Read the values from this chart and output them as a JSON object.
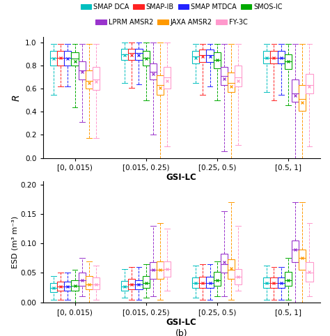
{
  "legend_labels": [
    "SMAP DCA",
    "SMAP-IB",
    "SMAP MTDCA",
    "SMOS-IC",
    "LPRM AMSR2",
    "JAXA AMSR2",
    "FY-3C"
  ],
  "colors": [
    "#00BFBF",
    "#FF2222",
    "#2222FF",
    "#00AA00",
    "#9933CC",
    "#FF9900",
    "#FF99CC"
  ],
  "groups": [
    "[0, 0.015)",
    "[0.015, 0.25)",
    "[0.25, 0.5)",
    "[0.5, 1]"
  ],
  "panel_a": {
    "ylabel": "R",
    "ylim": [
      0.0,
      1.05
    ],
    "yticks": [
      0.0,
      0.2,
      0.4,
      0.6,
      0.8,
      1.0
    ],
    "boxes": {
      "[0, 0.015)": [
        {
          "whislo": 0.55,
          "q1": 0.8,
          "med": 0.87,
          "q3": 0.93,
          "whishi": 0.99,
          "mean": 0.86
        },
        {
          "whislo": 0.62,
          "q1": 0.8,
          "med": 0.87,
          "q3": 0.93,
          "whishi": 0.99,
          "mean": 0.87
        },
        {
          "whislo": 0.62,
          "q1": 0.8,
          "med": 0.87,
          "q3": 0.93,
          "whishi": 0.99,
          "mean": 0.86
        },
        {
          "whislo": 0.44,
          "q1": 0.8,
          "med": 0.86,
          "q3": 0.92,
          "whishi": 0.99,
          "mean": 0.84
        },
        {
          "whislo": 0.31,
          "q1": 0.68,
          "med": 0.76,
          "q3": 0.84,
          "whishi": 0.99,
          "mean": 0.75
        },
        {
          "whislo": 0.17,
          "q1": 0.6,
          "med": 0.67,
          "q3": 0.76,
          "whishi": 0.99,
          "mean": 0.65
        },
        {
          "whislo": 0.17,
          "q1": 0.59,
          "med": 0.68,
          "q3": 0.79,
          "whishi": 0.99,
          "mean": 0.66
        }
      ],
      "[0.015, 0.25)": [
        {
          "whislo": 0.65,
          "q1": 0.85,
          "med": 0.9,
          "q3": 0.95,
          "whishi": 1.0,
          "mean": 0.89
        },
        {
          "whislo": 0.61,
          "q1": 0.85,
          "med": 0.91,
          "q3": 0.95,
          "whishi": 1.0,
          "mean": 0.89
        },
        {
          "whislo": 0.64,
          "q1": 0.85,
          "med": 0.91,
          "q3": 0.95,
          "whishi": 1.0,
          "mean": 0.89
        },
        {
          "whislo": 0.5,
          "q1": 0.8,
          "med": 0.87,
          "q3": 0.93,
          "whishi": 1.0,
          "mean": 0.86
        },
        {
          "whislo": 0.2,
          "q1": 0.68,
          "med": 0.75,
          "q3": 0.82,
          "whishi": 1.0,
          "mean": 0.73
        },
        {
          "whislo": 0.0,
          "q1": 0.55,
          "med": 0.63,
          "q3": 0.72,
          "whishi": 1.0,
          "mean": 0.61
        },
        {
          "whislo": 0.1,
          "q1": 0.6,
          "med": 0.7,
          "q3": 0.79,
          "whishi": 1.0,
          "mean": 0.67
        }
      ],
      "[0.25, 0.5)": [
        {
          "whislo": 0.65,
          "q1": 0.82,
          "med": 0.88,
          "q3": 0.93,
          "whishi": 0.99,
          "mean": 0.87
        },
        {
          "whislo": 0.55,
          "q1": 0.83,
          "med": 0.89,
          "q3": 0.94,
          "whishi": 0.99,
          "mean": 0.88
        },
        {
          "whislo": 0.62,
          "q1": 0.83,
          "med": 0.89,
          "q3": 0.94,
          "whishi": 0.99,
          "mean": 0.88
        },
        {
          "whislo": 0.5,
          "q1": 0.78,
          "med": 0.85,
          "q3": 0.92,
          "whishi": 0.99,
          "mean": 0.85
        },
        {
          "whislo": 0.06,
          "q1": 0.63,
          "med": 0.71,
          "q3": 0.79,
          "whishi": 0.99,
          "mean": 0.69
        },
        {
          "whislo": 0.0,
          "q1": 0.57,
          "med": 0.65,
          "q3": 0.74,
          "whishi": 0.99,
          "mean": 0.62
        },
        {
          "whislo": 0.11,
          "q1": 0.62,
          "med": 0.7,
          "q3": 0.8,
          "whishi": 0.99,
          "mean": 0.67
        }
      ],
      "[0.5, 1]": [
        {
          "whislo": 0.57,
          "q1": 0.82,
          "med": 0.87,
          "q3": 0.93,
          "whishi": 0.99,
          "mean": 0.87
        },
        {
          "whislo": 0.5,
          "q1": 0.82,
          "med": 0.87,
          "q3": 0.93,
          "whishi": 0.99,
          "mean": 0.87
        },
        {
          "whislo": 0.55,
          "q1": 0.82,
          "med": 0.87,
          "q3": 0.93,
          "whishi": 0.99,
          "mean": 0.87
        },
        {
          "whislo": 0.46,
          "q1": 0.77,
          "med": 0.84,
          "q3": 0.9,
          "whishi": 0.99,
          "mean": 0.84
        },
        {
          "whislo": 0.0,
          "q1": 0.49,
          "med": 0.56,
          "q3": 0.68,
          "whishi": 0.99,
          "mean": 0.54
        },
        {
          "whislo": 0.0,
          "q1": 0.41,
          "med": 0.51,
          "q3": 0.63,
          "whishi": 0.99,
          "mean": 0.48
        },
        {
          "whislo": 0.1,
          "q1": 0.56,
          "med": 0.63,
          "q3": 0.73,
          "whishi": 0.99,
          "mean": 0.62
        }
      ]
    }
  },
  "panel_b": {
    "ylabel": "ESD (m³ m⁻³)",
    "ylim": [
      0.0,
      0.205
    ],
    "yticks": [
      0.0,
      0.05,
      0.1,
      0.15,
      0.2
    ],
    "boxes": {
      "[0, 0.015)": [
        {
          "whislo": 0.005,
          "q1": 0.018,
          "med": 0.025,
          "q3": 0.033,
          "whishi": 0.045,
          "mean": 0.025
        },
        {
          "whislo": 0.005,
          "q1": 0.02,
          "med": 0.027,
          "q3": 0.035,
          "whishi": 0.05,
          "mean": 0.027
        },
        {
          "whislo": 0.005,
          "q1": 0.02,
          "med": 0.027,
          "q3": 0.035,
          "whishi": 0.05,
          "mean": 0.027
        },
        {
          "whislo": 0.0,
          "q1": 0.02,
          "med": 0.028,
          "q3": 0.038,
          "whishi": 0.055,
          "mean": 0.028
        },
        {
          "whislo": 0.01,
          "q1": 0.028,
          "med": 0.038,
          "q3": 0.05,
          "whishi": 0.075,
          "mean": 0.038
        },
        {
          "whislo": 0.0,
          "q1": 0.022,
          "med": 0.03,
          "q3": 0.045,
          "whishi": 0.07,
          "mean": 0.03
        },
        {
          "whislo": 0.005,
          "q1": 0.022,
          "med": 0.03,
          "q3": 0.042,
          "whishi": 0.062,
          "mean": 0.03
        }
      ],
      "[0.015, 0.25)": [
        {
          "whislo": 0.008,
          "q1": 0.02,
          "med": 0.027,
          "q3": 0.036,
          "whishi": 0.056,
          "mean": 0.027
        },
        {
          "whislo": 0.005,
          "q1": 0.022,
          "med": 0.03,
          "q3": 0.04,
          "whishi": 0.06,
          "mean": 0.03
        },
        {
          "whislo": 0.005,
          "q1": 0.022,
          "med": 0.03,
          "q3": 0.038,
          "whishi": 0.06,
          "mean": 0.03
        },
        {
          "whislo": 0.008,
          "q1": 0.025,
          "med": 0.033,
          "q3": 0.045,
          "whishi": 0.065,
          "mean": 0.033
        },
        {
          "whislo": 0.01,
          "q1": 0.04,
          "med": 0.055,
          "q3": 0.068,
          "whishi": 0.13,
          "mean": 0.055
        },
        {
          "whislo": 0.005,
          "q1": 0.04,
          "med": 0.055,
          "q3": 0.07,
          "whishi": 0.135,
          "mean": 0.055
        },
        {
          "whislo": 0.02,
          "q1": 0.043,
          "med": 0.057,
          "q3": 0.07,
          "whishi": 0.125,
          "mean": 0.057
        }
      ],
      "[0.25, 0.5)": [
        {
          "whislo": 0.008,
          "q1": 0.025,
          "med": 0.033,
          "q3": 0.042,
          "whishi": 0.062,
          "mean": 0.033
        },
        {
          "whislo": 0.005,
          "q1": 0.025,
          "med": 0.033,
          "q3": 0.043,
          "whishi": 0.065,
          "mean": 0.033
        },
        {
          "whislo": 0.005,
          "q1": 0.025,
          "med": 0.033,
          "q3": 0.043,
          "whishi": 0.065,
          "mean": 0.033
        },
        {
          "whislo": 0.01,
          "q1": 0.028,
          "med": 0.038,
          "q3": 0.052,
          "whishi": 0.07,
          "mean": 0.038
        },
        {
          "whislo": 0.01,
          "q1": 0.05,
          "med": 0.065,
          "q3": 0.082,
          "whishi": 0.155,
          "mean": 0.068
        },
        {
          "whislo": 0.005,
          "q1": 0.04,
          "med": 0.055,
          "q3": 0.073,
          "whishi": 0.17,
          "mean": 0.058
        },
        {
          "whislo": 0.02,
          "q1": 0.03,
          "med": 0.043,
          "q3": 0.057,
          "whishi": 0.13,
          "mean": 0.043
        }
      ],
      "[0.5, 1]": [
        {
          "whislo": 0.005,
          "q1": 0.025,
          "med": 0.033,
          "q3": 0.042,
          "whishi": 0.062,
          "mean": 0.033
        },
        {
          "whislo": 0.005,
          "q1": 0.025,
          "med": 0.033,
          "q3": 0.042,
          "whishi": 0.06,
          "mean": 0.033
        },
        {
          "whislo": 0.005,
          "q1": 0.025,
          "med": 0.033,
          "q3": 0.042,
          "whishi": 0.06,
          "mean": 0.033
        },
        {
          "whislo": 0.005,
          "q1": 0.028,
          "med": 0.038,
          "q3": 0.052,
          "whishi": 0.075,
          "mean": 0.038
        },
        {
          "whislo": 0.0,
          "q1": 0.068,
          "med": 0.09,
          "q3": 0.105,
          "whishi": 0.17,
          "mean": 0.09
        },
        {
          "whislo": 0.0,
          "q1": 0.055,
          "med": 0.075,
          "q3": 0.09,
          "whishi": 0.17,
          "mean": 0.075
        },
        {
          "whislo": 0.01,
          "q1": 0.035,
          "med": 0.05,
          "q3": 0.068,
          "whishi": 0.135,
          "mean": 0.052
        }
      ]
    }
  }
}
